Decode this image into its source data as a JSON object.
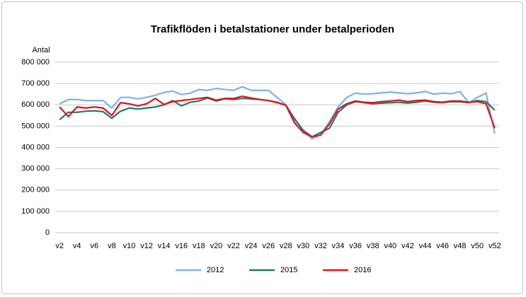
{
  "chart_data": {
    "type": "line",
    "title": "Trafikflöden i betalstationer under betalperioden",
    "y_label": "Antal",
    "categories": [
      "v2",
      null,
      "v4",
      null,
      "v6",
      null,
      "v8",
      null,
      "v10",
      null,
      "v12",
      null,
      "v14",
      null,
      "v16",
      null,
      "v18",
      null,
      "v20",
      null,
      "v22",
      null,
      "v24",
      null,
      "v26",
      null,
      "v28",
      null,
      "v30",
      null,
      "v32",
      null,
      "v34",
      null,
      "v36",
      null,
      "v38",
      null,
      "v40",
      null,
      "v42",
      null,
      "v44",
      null,
      "v46",
      null,
      "v48",
      null,
      "v50",
      null,
      "v52"
    ],
    "series": [
      {
        "name": "2012",
        "color": "#7fb2e5",
        "values": [
          605000,
          625000,
          625000,
          620000,
          620000,
          620000,
          585000,
          635000,
          635000,
          628000,
          635000,
          645000,
          658000,
          665000,
          648000,
          655000,
          672000,
          668000,
          677000,
          672000,
          668000,
          685000,
          668000,
          668000,
          668000,
          635000,
          600000,
          530000,
          480000,
          440000,
          460000,
          520000,
          590000,
          635000,
          655000,
          650000,
          652000,
          656000,
          660000,
          656000,
          652000,
          656000,
          663000,
          650000,
          655000,
          652000,
          662000,
          610000,
          635000,
          655000,
          465000
        ]
      },
      {
        "name": "2015",
        "color": "#1e7a68",
        "values": [
          530000,
          565000,
          565000,
          570000,
          572000,
          568000,
          537000,
          570000,
          585000,
          580000,
          585000,
          590000,
          600000,
          620000,
          595000,
          612000,
          618000,
          632000,
          618000,
          628000,
          625000,
          630000,
          628000,
          625000,
          620000,
          612000,
          598000,
          535000,
          480000,
          450000,
          470000,
          490000,
          565000,
          600000,
          615000,
          610000,
          605000,
          608000,
          610000,
          612000,
          608000,
          612000,
          618000,
          612000,
          610000,
          615000,
          614000,
          610000,
          620000,
          615000,
          575000
        ]
      },
      {
        "name": "2016",
        "color": "#e0141e",
        "values": [
          590000,
          545000,
          590000,
          585000,
          590000,
          585000,
          550000,
          610000,
          605000,
          595000,
          605000,
          630000,
          602000,
          615000,
          620000,
          625000,
          630000,
          635000,
          622000,
          630000,
          630000,
          640000,
          632000,
          625000,
          620000,
          610000,
          598000,
          515000,
          470000,
          450000,
          458000,
          510000,
          580000,
          605000,
          618000,
          612000,
          610000,
          615000,
          618000,
          622000,
          615000,
          620000,
          622000,
          615000,
          612000,
          618000,
          618000,
          612000,
          615000,
          605000,
          490000
        ]
      }
    ],
    "ylim": [
      0,
      800000
    ],
    "yticks": [
      0,
      {
        "value": 100000,
        "label": "100 000"
      },
      {
        "value": 200000,
        "label": "200 000"
      },
      {
        "value": 300000,
        "label": "300 000"
      },
      {
        "value": 400000,
        "label": "400 000"
      },
      {
        "value": 500000,
        "label": "500 000"
      },
      {
        "value": 600000,
        "label": "600 000"
      },
      {
        "value": 700000,
        "label": "700 000"
      },
      {
        "value": 800000,
        "label": "800 000"
      }
    ],
    "grid": true
  }
}
